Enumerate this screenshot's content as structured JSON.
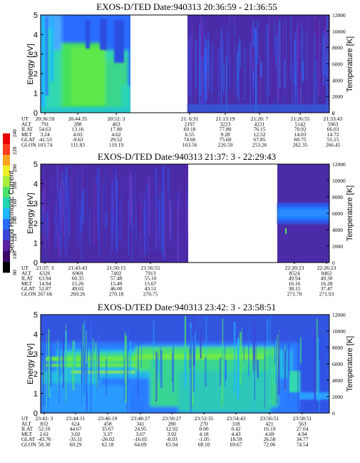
{
  "colors": {
    "background": "#ffffff",
    "spectrogram_low": "#5a1f9e",
    "spectrogram_mid": "#2a6bff",
    "spectrogram_high": "#44dd33",
    "colorbar": [
      "#000000",
      "#3a0a66",
      "#5a1f9e",
      "#3b46d8",
      "#2a6bff",
      "#1fb8ff",
      "#22d6b3",
      "#4de36b",
      "#a8ee3a",
      "#f0f02a",
      "#ffa21e",
      "#ff3c1e",
      "#e80000"
    ]
  },
  "colorbar": {
    "label": "Second Harmonic Current",
    "ticks": [
      "80",
      "100",
      "120",
      "140",
      "160",
      "180",
      "200",
      "220",
      "240"
    ]
  },
  "panel_labels": {
    "energy_axis": "Energy [eV]",
    "temperature_axis": "Temperature [K]"
  },
  "chart_data": [
    {
      "type": "heatmap",
      "title": "EXOS-D/TED   Date:940313  20:36:59 - 21:36:55",
      "ylabel": "Energy [eV]",
      "ylabel_right": "Temperature [K]",
      "ylim": [
        0,
        5
      ],
      "ylim_right": [
        0,
        12000
      ],
      "yticks": [
        "0",
        "1",
        "2",
        "3",
        "4",
        "5"
      ],
      "yticks_right": [
        "0",
        "2000",
        "4000",
        "6000",
        "8000",
        "10000",
        "12000"
      ],
      "data_segments": [
        {
          "start": "20:36:59",
          "end": "20:52:3",
          "dominant": "low-energy enhancement (green) 0-4 eV"
        },
        {
          "start": "21:6:31",
          "end": "21:36:55",
          "dominant": "background (purple)"
        }
      ],
      "table": {
        "rows": [
          "UT",
          "ALT",
          "ILAT",
          "MLT",
          "GLAT",
          "GLON"
        ],
        "columns": [
          [
            "20:36:59",
            "791",
            "54.63",
            "3.24",
            "-41.53",
            "103.74"
          ],
          [
            "20:44:35",
            "288",
            "13.16",
            "4.03",
            "-9.63",
            "111.83"
          ],
          [
            "20:52: 3",
            "463",
            "17.80",
            "4.62",
            "29.52",
            "119.19"
          ],
          [
            "21: 6:31",
            "2197",
            "69.18",
            "6.55",
            "74.66",
            "163.56"
          ],
          [
            "21:13:19",
            "3223",
            "77.80",
            "9.28",
            "75.60",
            "226.59"
          ],
          [
            "21:20: 7",
            "4221",
            "76.15",
            "12.52",
            "67.85",
            "253.26"
          ],
          [
            "21:26:55",
            "5142",
            "70.92",
            "14.03",
            "60.75",
            "262.35"
          ],
          [
            "21:33:43",
            "5963",
            "66.03",
            "14.72",
            "55.15",
            "266.45"
          ]
        ]
      }
    },
    {
      "type": "heatmap",
      "title": "EXOS-D/TED   Date:940313  21:37: 3 - 22:29:43",
      "ylabel": "Energy [eV]",
      "ylabel_right": "Temperature [K]",
      "ylim": [
        0,
        5
      ],
      "ylim_right": [
        0,
        12000
      ],
      "yticks": [
        "0",
        "1",
        "2",
        "3",
        "4",
        "5"
      ],
      "yticks_right": [
        "0",
        "2000",
        "4000",
        "6000",
        "8000",
        "10000",
        "12000"
      ],
      "data_segments": [
        {
          "start": "21:37: 3",
          "end": "21:56:55",
          "dominant": "background (purple)"
        },
        {
          "start": "22:20:23",
          "end": "22:29:43",
          "dominant": "enhancement near 2.5-3 eV (blue)"
        }
      ],
      "table": {
        "rows": [
          "UT",
          "ALT",
          "ILAT",
          "MLT",
          "GLAT",
          "GLON"
        ],
        "columns": [
          [
            "21:37: 3",
            "6326",
            "63.94",
            "14.94",
            "52.87",
            "267.66"
          ],
          [
            "21:43:43",
            "6969",
            "60.35",
            "15.26",
            "49.02",
            "269.26"
          ],
          [
            "21:50:15",
            "7492",
            "57.48",
            "15.49",
            "46.00",
            "270.18"
          ],
          [
            "21:56:55",
            "7913",
            "55.10",
            "15.67",
            "43.51",
            "270.75"
          ],
          [
            "22:20:23",
            "8524",
            "49.94",
            "16.16",
            "38.15",
            "271.70"
          ],
          [
            "22:26:23",
            "8462",
            "49.30",
            "16.28",
            "37.47",
            "271.93"
          ]
        ]
      }
    },
    {
      "type": "heatmap",
      "title": "EXOS-D/TED   Date:940313  23:42: 3 - 23:58:51",
      "ylabel": "Energy [eV]",
      "ylabel_right": "Temperature [K]",
      "ylim": [
        0,
        5
      ],
      "ylim_right": [
        0,
        12000
      ],
      "yticks": [
        "0",
        "1",
        "2",
        "3",
        "4",
        "5"
      ],
      "yticks_right": [
        "0",
        "2000",
        "4000",
        "6000",
        "8000",
        "10000",
        "12000"
      ],
      "data_segments": [
        {
          "start": "23:42: 3",
          "end": "23:58:51",
          "dominant": "green band near 2-3 eV, blue elsewhere"
        }
      ],
      "table": {
        "rows": [
          "UT",
          "ALT",
          "ILAT",
          "MLT",
          "GLAT",
          "GLON"
        ],
        "columns": [
          [
            "23:42: 3",
            "832",
            "52.10",
            "2.61",
            "-43.76",
            "58.30"
          ],
          [
            "23:44:11",
            "624",
            "44.67",
            "3.02",
            "-35.11",
            "60.29"
          ],
          [
            "23:46:19",
            "458",
            "35.67",
            "3.37",
            "-26.02",
            "62.18"
          ],
          [
            "23:48:27",
            "341",
            "24.95",
            "3.67",
            "-16.65",
            "64.09"
          ],
          [
            "23:50:27",
            "280",
            "12.92",
            "3.92",
            "-8.03",
            "65.94"
          ],
          [
            "23:52:35",
            "270",
            "0.00",
            "4.18",
            "-1.05",
            "68.10"
          ],
          [
            "23:54:43",
            "318",
            "0.42",
            "4.43",
            "18.59",
            "69.67"
          ],
          [
            "23:56:51",
            "421",
            "16.19",
            "4.69",
            "26.58",
            "72.06"
          ],
          [
            "23:58:51",
            "563",
            "27.04",
            "4.94",
            "34.77",
            "74.54"
          ]
        ]
      }
    }
  ]
}
